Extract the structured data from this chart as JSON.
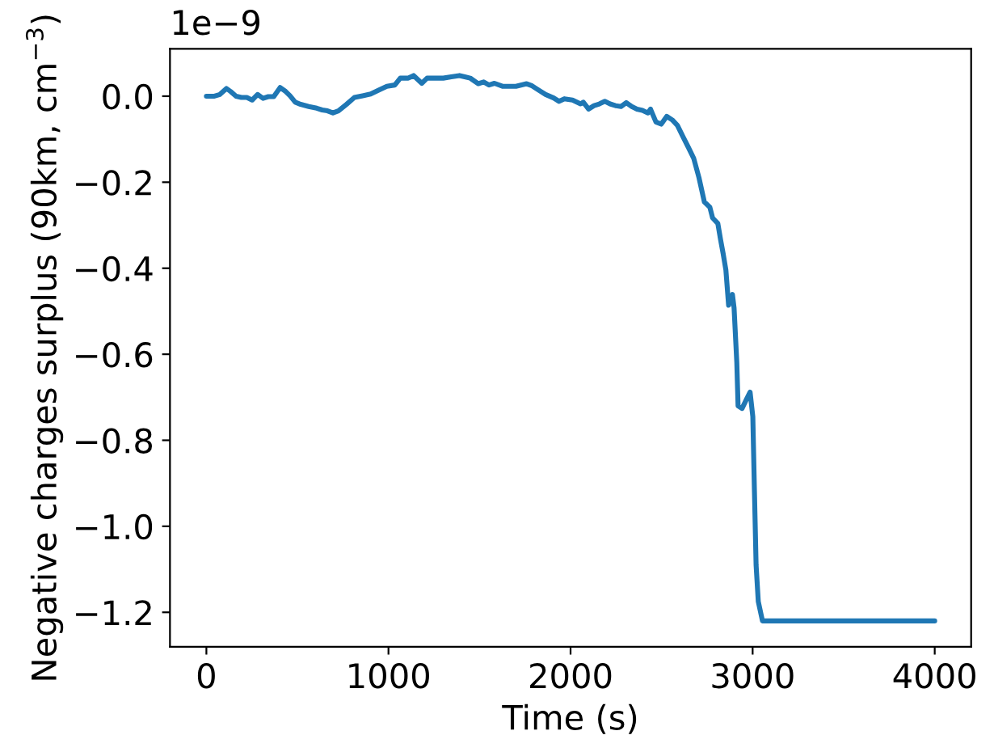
{
  "chart_data": {
    "type": "line",
    "xlabel": "Time (s)",
    "ylabel": "Negative charges surplus (90km, cm$^{−3}$)",
    "annotations": [
      "1e−9"
    ],
    "x": [
      0,
      44,
      74,
      110,
      133,
      163,
      192,
      222,
      251,
      281,
      311,
      340,
      370,
      405,
      435,
      459,
      488,
      518,
      562,
      606,
      636,
      665,
      695,
      725,
      769,
      813,
      858,
      902,
      946,
      991,
      1035,
      1065,
      1109,
      1138,
      1183,
      1212,
      1257,
      1301,
      1345,
      1390,
      1419,
      1449,
      1493,
      1523,
      1552,
      1582,
      1626,
      1656,
      1700,
      1759,
      1789,
      1818,
      1863,
      1907,
      1937,
      1966,
      2011,
      2055,
      2070,
      2099,
      2129,
      2158,
      2188,
      2217,
      2247,
      2277,
      2306,
      2336,
      2365,
      2395,
      2425,
      2439,
      2469,
      2498,
      2528,
      2558,
      2587,
      2617,
      2647,
      2676,
      2705,
      2735,
      2765,
      2780,
      2809,
      2824,
      2838,
      2853,
      2868,
      2889,
      2898,
      2913,
      2920,
      2942,
      2966,
      2986,
      3001,
      3010,
      3019,
      3031,
      3054,
      4000
    ],
    "series": [
      {
        "color": "#1f77b4",
        "values": [
          0.0,
          0.0,
          0.004,
          0.018,
          0.011,
          0.0,
          -0.003,
          -0.003,
          -0.009,
          0.004,
          -0.005,
          -0.001,
          -0.001,
          0.02,
          0.011,
          0.001,
          -0.014,
          -0.019,
          -0.024,
          -0.028,
          -0.032,
          -0.034,
          -0.039,
          -0.034,
          -0.019,
          -0.003,
          0.001,
          0.005,
          0.014,
          0.023,
          0.026,
          0.042,
          0.042,
          0.048,
          0.03,
          0.042,
          0.042,
          0.042,
          0.045,
          0.048,
          0.045,
          0.042,
          0.029,
          0.033,
          0.026,
          0.03,
          0.023,
          0.023,
          0.023,
          0.029,
          0.024,
          0.016,
          0.004,
          -0.004,
          -0.012,
          -0.006,
          -0.009,
          -0.018,
          -0.014,
          -0.03,
          -0.022,
          -0.018,
          -0.012,
          -0.018,
          -0.022,
          -0.024,
          -0.015,
          -0.024,
          -0.03,
          -0.033,
          -0.039,
          -0.03,
          -0.06,
          -0.065,
          -0.047,
          -0.055,
          -0.068,
          -0.094,
          -0.119,
          -0.144,
          -0.189,
          -0.246,
          -0.258,
          -0.283,
          -0.296,
          -0.334,
          -0.366,
          -0.404,
          -0.486,
          -0.461,
          -0.492,
          -0.619,
          -0.72,
          -0.726,
          -0.705,
          -0.688,
          -0.745,
          -0.92,
          -1.09,
          -1.175,
          -1.22,
          -1.22
        ]
      }
    ],
    "xlim": [
      -200,
      4200
    ],
    "ylim": [
      -1.28,
      0.11
    ],
    "xticks": [
      0,
      1000,
      2000,
      3000,
      4000
    ],
    "yticks": [
      {
        "value": 0,
        "label": "0.0"
      },
      {
        "value": -0.2,
        "label": "−0.2"
      },
      {
        "value": -0.4,
        "label": "−0.4"
      },
      {
        "value": -0.6,
        "label": "−0.6"
      },
      {
        "value": -0.8,
        "label": "−0.8"
      },
      {
        "value": -1.0,
        "label": "−1.0"
      },
      {
        "value": -1.2,
        "label": "−1.2"
      }
    ],
    "marker": "none",
    "line_style": "solid"
  }
}
